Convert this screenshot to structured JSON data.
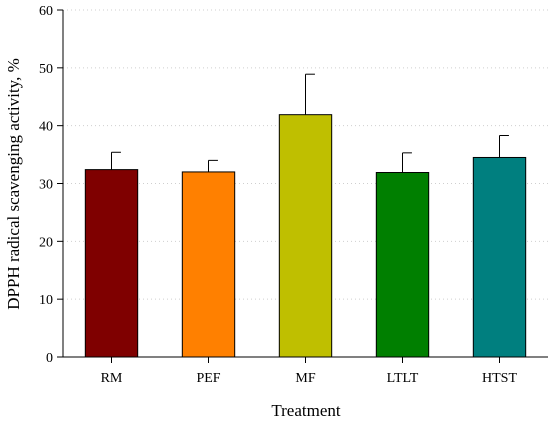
{
  "chart_data": {
    "type": "bar",
    "xlabel": "Treatment",
    "ylabel": "DPPH radical scavenging activity, %",
    "ylim": [
      0,
      60
    ],
    "yticks": [
      0,
      10,
      20,
      30,
      40,
      50,
      60
    ],
    "grid": "horizontal dotted",
    "categories": [
      "RM",
      "PEF",
      "MF",
      "LTLT",
      "HTST"
    ],
    "values": [
      32.4,
      32.0,
      41.9,
      31.9,
      34.5
    ],
    "errors": [
      3.0,
      2.0,
      7.0,
      3.4,
      3.8
    ],
    "colors": [
      "#7f0000",
      "#ff8000",
      "#bfbf00",
      "#007f00",
      "#007f7f"
    ]
  }
}
